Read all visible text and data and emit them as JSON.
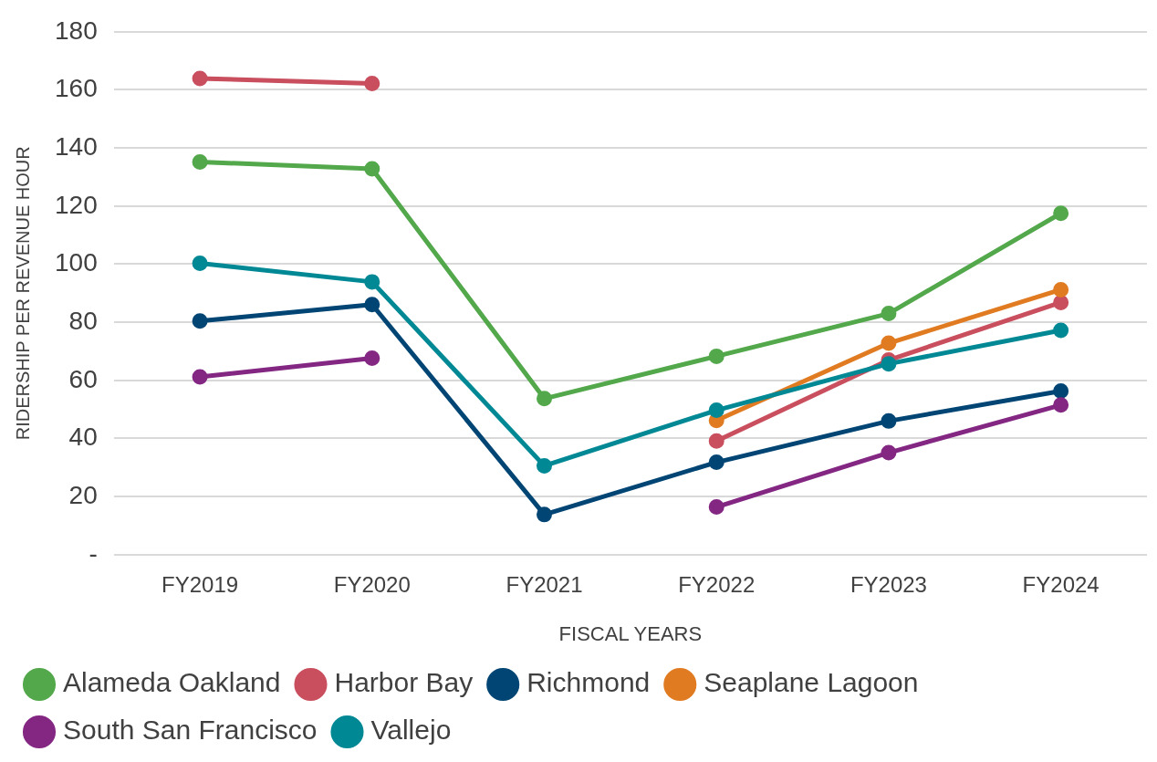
{
  "chart_data": {
    "type": "line",
    "xlabel": "FISCAL YEARS",
    "ylabel": "RIDERSHIP PER REVENUE HOUR",
    "categories": [
      "FY2019",
      "FY2020",
      "FY2021",
      "FY2022",
      "FY2023",
      "FY2024"
    ],
    "series": [
      {
        "name": "Alameda Oakland",
        "color": "#52a84a",
        "values": [
          135.2,
          132.8,
          53.7,
          68.3,
          83.0,
          117.5
        ]
      },
      {
        "name": "Harbor Bay",
        "color": "#c94e5e",
        "values": [
          163.9,
          162.2,
          null,
          39.1,
          67.0,
          86.8
        ]
      },
      {
        "name": "Richmond",
        "color": "#004574",
        "values": [
          80.4,
          86.1,
          13.8,
          31.8,
          46.0,
          56.3
        ]
      },
      {
        "name": "Seaplane Lagoon",
        "color": "#e07b22",
        "values": [
          null,
          null,
          null,
          46.2,
          72.8,
          91.2
        ]
      },
      {
        "name": "South San Francisco",
        "color": "#832783",
        "values": [
          61.2,
          67.6,
          null,
          16.4,
          35.1,
          51.5
        ]
      },
      {
        "name": "Vallejo",
        "color": "#008995",
        "values": [
          100.3,
          93.9,
          30.6,
          49.7,
          65.7,
          77.2
        ]
      }
    ],
    "ylim": [
      0,
      180
    ],
    "yticks": [
      {
        "value": 0,
        "label": "-"
      },
      20,
      40,
      60,
      80,
      100,
      120,
      140,
      160,
      180
    ],
    "grid": "y",
    "legend": "bottom",
    "marker": "circle"
  }
}
